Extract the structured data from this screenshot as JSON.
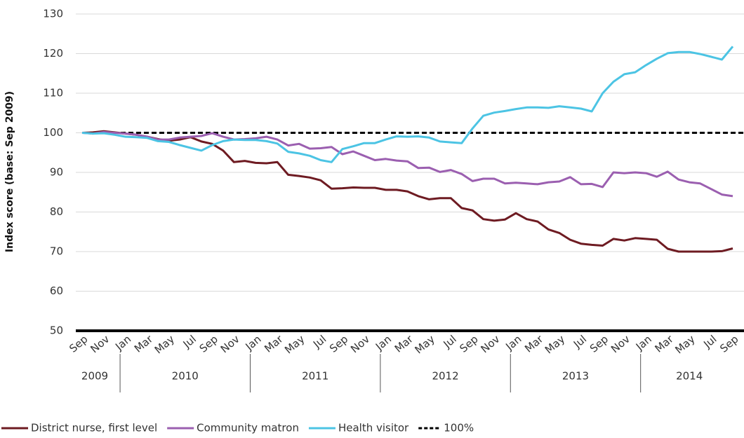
{
  "chart_data": {
    "type": "line",
    "y_label": "Index score (base: Sep 2009)",
    "categories": [
      "Sep",
      null,
      "Nov",
      null,
      "Jan",
      null,
      "Mar",
      null,
      "May",
      null,
      "Jul",
      null,
      "Sep",
      null,
      "Nov",
      null,
      "Jan",
      null,
      "Mar",
      null,
      "May",
      null,
      "Jul",
      null,
      "Sep",
      null,
      "Nov",
      null,
      "Jan",
      null,
      "Mar",
      null,
      "May",
      null,
      "Jul",
      null,
      "Sep",
      null,
      "Nov",
      null,
      "Jan",
      null,
      "Mar",
      null,
      "May",
      null,
      "Jul",
      null,
      "Sep",
      null,
      "Nov",
      null,
      "Jan",
      null,
      "Mar",
      null,
      "May",
      null,
      "Jul",
      null,
      "Sep"
    ],
    "years": [
      "2009",
      "2010",
      "2011",
      "2012",
      "2013",
      "2014"
    ],
    "series": [
      {
        "name": "District nurse, first level",
        "color": "#6e1b22",
        "values": [
          100,
          100.1,
          100.4,
          100.1,
          99.8,
          99.5,
          99,
          98.4,
          98,
          98.3,
          98.9,
          97.8,
          97.2,
          95.5,
          92.6,
          92.9,
          92.4,
          92.3,
          92.6,
          89.4,
          89.1,
          88.7,
          88,
          85.9,
          86,
          86.2,
          86.1,
          86.1,
          85.6,
          85.6,
          85.2,
          84,
          83.2,
          83.5,
          83.5,
          81,
          80.4,
          78.2,
          77.8,
          78.1,
          79.7,
          78.2,
          77.6,
          75.6,
          74.7,
          73,
          72,
          71.7,
          71.5,
          73.2,
          72.8,
          73.4,
          73.2,
          73,
          70.7,
          70,
          70,
          70,
          70,
          70.1,
          70.8
        ]
      },
      {
        "name": "Community matron",
        "color": "#9b5fb0",
        "values": [
          100,
          99.8,
          100.2,
          100,
          99.8,
          99.5,
          99,
          98.3,
          98.3,
          98.8,
          99,
          99.2,
          99.9,
          99,
          98.3,
          98.4,
          98.6,
          99,
          98.3,
          96.8,
          97.2,
          96,
          96.1,
          96.4,
          94.6,
          95.3,
          94.2,
          93.1,
          93.4,
          93,
          92.8,
          91.1,
          91.2,
          90.1,
          90.6,
          89.6,
          87.8,
          88.4,
          88.4,
          87.2,
          87.4,
          87.2,
          87,
          87.5,
          87.7,
          88.8,
          87,
          87.1,
          86.3,
          90,
          89.8,
          90,
          89.8,
          88.9,
          90.2,
          88.2,
          87.5,
          87.2,
          85.8,
          84.4,
          84
        ]
      },
      {
        "name": "Health visitor",
        "color": "#4cc4e4",
        "values": [
          100,
          99.8,
          99.9,
          99.5,
          99,
          98.9,
          98.7,
          97.9,
          97.7,
          96.9,
          96.2,
          95.5,
          96.9,
          97.9,
          98.3,
          98.2,
          98.2,
          97.9,
          97.3,
          95.2,
          94.8,
          94.2,
          93.1,
          92.6,
          95.9,
          96.6,
          97.4,
          97.4,
          98.3,
          99.1,
          99,
          99.1,
          98.8,
          97.8,
          97.6,
          97.4,
          101.1,
          104.3,
          105.1,
          105.5,
          106,
          106.4,
          106.4,
          106.3,
          106.7,
          106.4,
          106.1,
          105.4,
          110,
          112.9,
          114.8,
          115.3,
          117.1,
          118.7,
          120.1,
          120.4,
          120.4,
          119.9,
          119.2,
          118.5,
          121.8
        ]
      }
    ],
    "reference_line": {
      "name": "100%",
      "value": 100,
      "color": "#000000"
    },
    "ylim": [
      50,
      130
    ],
    "yticks": [
      50,
      60,
      70,
      80,
      90,
      100,
      110,
      120,
      130
    ],
    "grid": true,
    "legend": "bottom"
  }
}
